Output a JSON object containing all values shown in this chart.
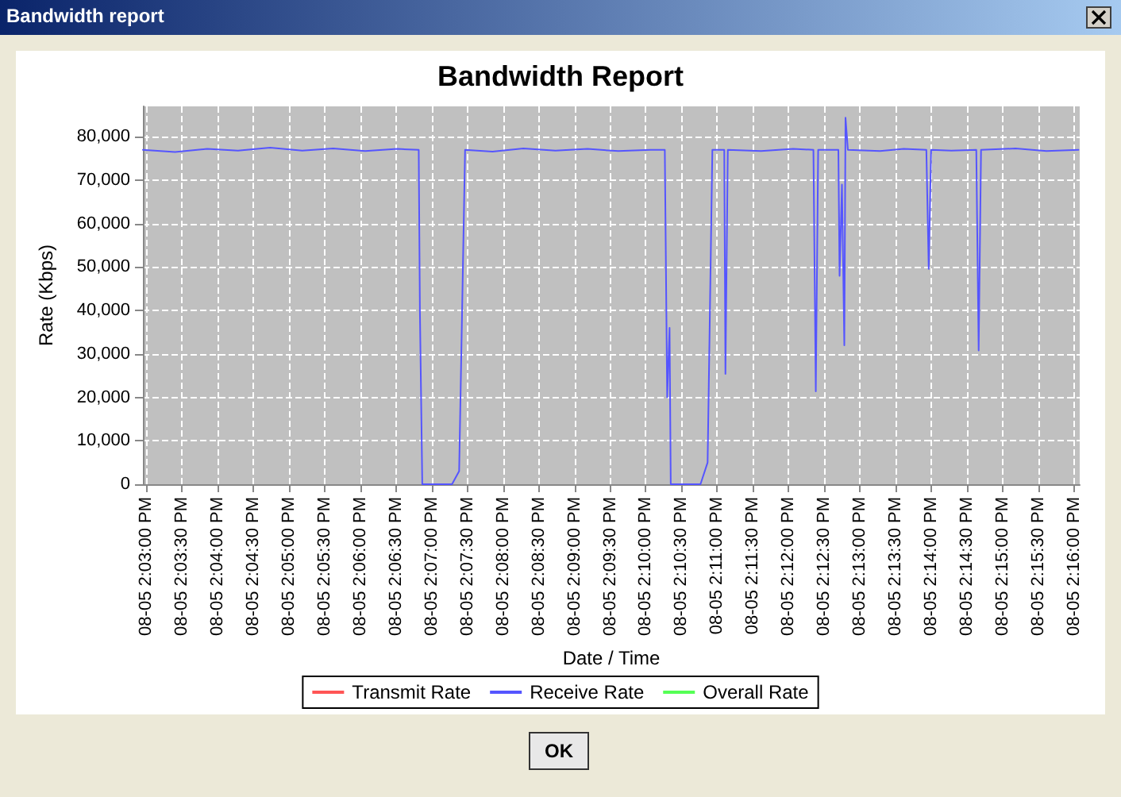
{
  "chart_data": {
    "type": "line",
    "title": "Bandwidth Report",
    "xlabel": "Date / Time",
    "ylabel": "Rate (Kbps)",
    "annotations": [
      "Bandwidth report",
      "OK"
    ],
    "x": [
      "--08-05T14:02:57",
      "--08-05T14:03:24",
      "--08-05T14:03:51",
      "--08-05T14:04:17",
      "--08-05T14:04:44",
      "--08-05T14:05:11",
      "--08-05T14:05:37",
      "--08-05T14:06:04",
      "--08-05T14:06:31",
      "--08-05T14:06:49",
      "--08-05T14:06:50",
      "--08-05T14:06:52",
      "--08-05T14:07:17",
      "--08-05T14:07:23",
      "--08-05T14:07:28",
      "--08-05T14:07:51",
      "--08-05T14:08:17",
      "--08-05T14:08:44",
      "--08-05T14:09:11",
      "--08-05T14:09:37",
      "--08-05T14:10:04",
      "--08-05T14:10:16",
      "--08-05T14:10:18",
      "--08-05T14:10:20",
      "--08-05T14:10:21",
      "--08-05T14:10:46",
      "--08-05T14:10:52",
      "--08-05T14:10:56",
      "--08-05T14:11:06",
      "--08-05T14:11:07",
      "--08-05T14:11:09",
      "--08-05T14:11:37",
      "--08-05T14:12:04",
      "--08-05T14:12:21",
      "--08-05T14:12:23",
      "--08-05T14:12:25",
      "--08-05T14:12:42",
      "--08-05T14:12:43",
      "--08-05T14:12:45",
      "--08-05T14:12:47",
      "--08-05T14:12:48",
      "--08-05T14:12:50",
      "--08-05T14:13:17",
      "--08-05T14:13:37",
      "--08-05T14:13:56",
      "--08-05T14:13:58",
      "--08-05T14:14:00",
      "--08-05T14:14:17",
      "--08-05T14:14:38",
      "--08-05T14:14:40",
      "--08-05T14:14:42",
      "--08-05T14:15:11",
      "--08-05T14:15:37",
      "--08-05T14:16:04"
    ],
    "series": [
      {
        "name": "Transmit Rate",
        "color": "#ff5555",
        "values": [
          null,
          null,
          null,
          null,
          null,
          null,
          null,
          null,
          null,
          null,
          null,
          null,
          null,
          null,
          null,
          null,
          null,
          null,
          null,
          null,
          null,
          null,
          null,
          null,
          null,
          null,
          null,
          null,
          null,
          null,
          null,
          null,
          null,
          null,
          null,
          null,
          null,
          null,
          null,
          null,
          null,
          null,
          null,
          null,
          null,
          null,
          null,
          null,
          null,
          null,
          null,
          null,
          null,
          null
        ]
      },
      {
        "name": "Receive Rate",
        "color": "#5555ff",
        "values": [
          77000,
          76500,
          77200,
          76800,
          77500,
          76800,
          77300,
          76700,
          77200,
          77000,
          40000,
          0,
          0,
          3000,
          77000,
          76600,
          77300,
          76800,
          77200,
          76700,
          77000,
          77000,
          20000,
          36000,
          0,
          0,
          5000,
          77000,
          77000,
          25400,
          77000,
          76700,
          77200,
          77000,
          21400,
          77000,
          77000,
          48000,
          69000,
          32000,
          84400,
          77000,
          76700,
          77200,
          77000,
          49600,
          77000,
          76800,
          77000,
          30800,
          77000,
          77300,
          76700,
          77000
        ]
      },
      {
        "name": "Overall Rate",
        "color": "#55ff55",
        "values": [
          null,
          null,
          null,
          null,
          null,
          null,
          null,
          null,
          null,
          null,
          null,
          null,
          null,
          null,
          null,
          null,
          null,
          null,
          null,
          null,
          null,
          null,
          null,
          null,
          null,
          null,
          null,
          null,
          null,
          null,
          null,
          null,
          null,
          null,
          null,
          null,
          null,
          null,
          null,
          null,
          null,
          null,
          null,
          null,
          null,
          null,
          null,
          null,
          null,
          null,
          null,
          null,
          null,
          null
        ]
      }
    ],
    "xlim": [
      "--08-05T14:02:57",
      "--08-05T14:16:05"
    ],
    "xticks": [
      {
        "value": "--08-05T14:03:00",
        "label": "08-05 2:03:00 PM"
      },
      {
        "value": "--08-05T14:03:30",
        "label": "08-05 2:03:30 PM"
      },
      {
        "value": "--08-05T14:04:00",
        "label": "08-05 2:04:00 PM"
      },
      {
        "value": "--08-05T14:04:30",
        "label": "08-05 2:04:30 PM"
      },
      {
        "value": "--08-05T14:05:00",
        "label": "08-05 2:05:00 PM"
      },
      {
        "value": "--08-05T14:05:30",
        "label": "08-05 2:05:30 PM"
      },
      {
        "value": "--08-05T14:06:00",
        "label": "08-05 2:06:00 PM"
      },
      {
        "value": "--08-05T14:06:30",
        "label": "08-05 2:06:30 PM"
      },
      {
        "value": "--08-05T14:07:00",
        "label": "08-05 2:07:00 PM"
      },
      {
        "value": "--08-05T14:07:30",
        "label": "08-05 2:07:30 PM"
      },
      {
        "value": "--08-05T14:08:00",
        "label": "08-05 2:08:00 PM"
      },
      {
        "value": "--08-05T14:08:30",
        "label": "08-05 2:08:30 PM"
      },
      {
        "value": "--08-05T14:09:00",
        "label": "08-05 2:09:00 PM"
      },
      {
        "value": "--08-05T14:09:30",
        "label": "08-05 2:09:30 PM"
      },
      {
        "value": "--08-05T14:10:00",
        "label": "08-05 2:10:00 PM"
      },
      {
        "value": "--08-05T14:10:30",
        "label": "08-05 2:10:30 PM"
      },
      {
        "value": "--08-05T14:11:00",
        "label": "08-05 2:11:00 PM"
      },
      {
        "value": "--08-05T14:11:30",
        "label": "08-05 2:11:30 PM"
      },
      {
        "value": "--08-05T14:12:00",
        "label": "08-05 2:12:00 PM"
      },
      {
        "value": "--08-05T14:12:30",
        "label": "08-05 2:12:30 PM"
      },
      {
        "value": "--08-05T14:13:00",
        "label": "08-05 2:13:00 PM"
      },
      {
        "value": "--08-05T14:13:30",
        "label": "08-05 2:13:30 PM"
      },
      {
        "value": "--08-05T14:14:00",
        "label": "08-05 2:14:00 PM"
      },
      {
        "value": "--08-05T14:14:30",
        "label": "08-05 2:14:30 PM"
      },
      {
        "value": "--08-05T14:15:00",
        "label": "08-05 2:15:00 PM"
      },
      {
        "value": "--08-05T14:15:30",
        "label": "08-05 2:15:30 PM"
      },
      {
        "value": "--08-05T14:16:00",
        "label": "08-05 2:16:00 PM"
      }
    ],
    "ylim": [
      0,
      87000
    ],
    "yticks": [
      {
        "value": 0,
        "label": "0"
      },
      {
        "value": 10000,
        "label": "10,000"
      },
      {
        "value": 20000,
        "label": "20,000"
      },
      {
        "value": 30000,
        "label": "30,000"
      },
      {
        "value": 40000,
        "label": "40,000"
      },
      {
        "value": 50000,
        "label": "50,000"
      },
      {
        "value": 60000,
        "label": "60,000"
      },
      {
        "value": 70000,
        "label": "70,000"
      },
      {
        "value": 80000,
        "label": "80,000"
      }
    ],
    "grid": true,
    "legend": "bottom",
    "marker": "none",
    "line_style": "solid"
  }
}
